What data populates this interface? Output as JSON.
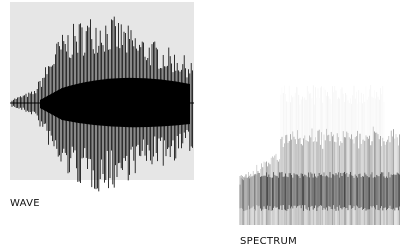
{
  "labels": {
    "wave": "WAVE",
    "spectrum": "SPECTRUM"
  }
}
